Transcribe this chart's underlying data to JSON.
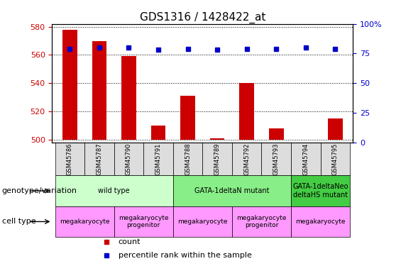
{
  "title": "GDS1316 / 1428422_at",
  "samples": [
    "GSM45786",
    "GSM45787",
    "GSM45790",
    "GSM45791",
    "GSM45788",
    "GSM45789",
    "GSM45792",
    "GSM45793",
    "GSM45794",
    "GSM45795"
  ],
  "counts": [
    578,
    570,
    559,
    510,
    531,
    501,
    540,
    508,
    500,
    515
  ],
  "percentile_ranks": [
    79,
    80,
    80,
    78,
    79,
    78,
    79,
    79,
    80,
    79
  ],
  "ylim_left": [
    498,
    582
  ],
  "ylim_right": [
    0,
    100
  ],
  "yticks_left": [
    500,
    520,
    540,
    560,
    580
  ],
  "yticks_right": [
    0,
    25,
    50,
    75,
    100
  ],
  "bar_color": "#cc0000",
  "dot_color": "#0000cc",
  "genotype_groups": [
    {
      "label": "wild type",
      "start": 0,
      "end": 3,
      "color": "#ccffcc"
    },
    {
      "label": "GATA-1deltaN mutant",
      "start": 4,
      "end": 7,
      "color": "#88ee88"
    },
    {
      "label": "GATA-1deltaNeo\ndeltaHS mutant",
      "start": 8,
      "end": 9,
      "color": "#44cc44"
    }
  ],
  "cell_type_groups": [
    {
      "label": "megakaryocyte",
      "start": 0,
      "end": 1,
      "color": "#ff99ff"
    },
    {
      "label": "megakaryocyte\nprogenitor",
      "start": 2,
      "end": 3,
      "color": "#ff99ff"
    },
    {
      "label": "megakaryocyte",
      "start": 4,
      "end": 5,
      "color": "#ff99ff"
    },
    {
      "label": "megakaryocyte\nprogenitor",
      "start": 6,
      "end": 7,
      "color": "#ff99ff"
    },
    {
      "label": "megakaryocyte",
      "start": 8,
      "end": 9,
      "color": "#ff99ff"
    }
  ],
  "legend_count_color": "#cc0000",
  "legend_pct_color": "#0000cc",
  "genotype_label": "genotype/variation",
  "celltype_label": "cell type",
  "ylabel_left_color": "#cc0000",
  "ylabel_right_color": "#0000cc",
  "sample_bg_color": "#dddddd",
  "baseline": 500
}
